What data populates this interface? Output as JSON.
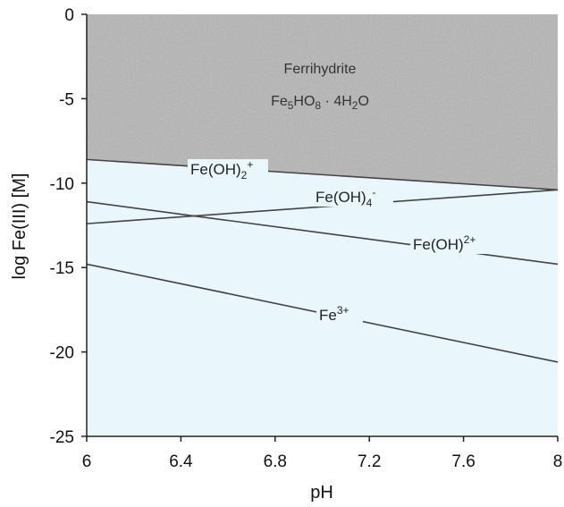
{
  "chart_data": {
    "type": "line",
    "xlabel": "pH",
    "ylabel": "log Fe(III) [M]",
    "xlim": [
      6,
      8
    ],
    "ylim": [
      -25,
      0
    ],
    "x_ticks": [
      "6",
      "6.4",
      "6.8",
      "7.2",
      "7.6",
      "8"
    ],
    "y_ticks": [
      "0",
      "-5",
      "-10",
      "-15",
      "-20",
      "-25"
    ],
    "grid": false,
    "shaded_region": {
      "label": "Ferrihydrite",
      "formula": "Fe5HO8 · 4H2O",
      "fill_color": "#b5b5b5",
      "lower_boundary": [
        [
          6,
          -8.6
        ],
        [
          8,
          -10.4
        ]
      ]
    },
    "unshaded_fill_color": "#e9f6fc",
    "series": [
      {
        "name": "Fe(OH)2+",
        "label_main": "Fe(OH)",
        "label_sub": "2",
        "label_sup": "+",
        "x": [
          6,
          8
        ],
        "y": [
          -8.6,
          -10.4
        ]
      },
      {
        "name": "Fe(OH)4-",
        "label_main": "Fe(OH)",
        "label_sub": "4",
        "label_sup": "-",
        "x": [
          6,
          8
        ],
        "y": [
          -12.4,
          -10.4
        ]
      },
      {
        "name": "Fe(OH)2+",
        "label_main": "Fe(OH)",
        "label_sub": "",
        "label_sup": "2+",
        "x": [
          6,
          8
        ],
        "y": [
          -11.1,
          -14.8
        ]
      },
      {
        "name": "Fe3+",
        "label_main": "Fe",
        "label_sub": "",
        "label_sup": "3+",
        "x": [
          6,
          8
        ],
        "y": [
          -14.8,
          -20.6
        ]
      }
    ]
  }
}
